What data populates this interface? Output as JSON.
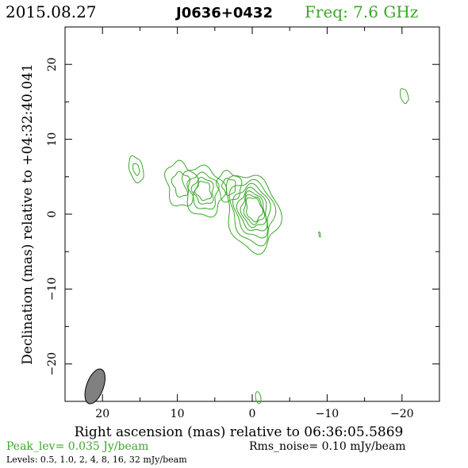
{
  "header": {
    "date": "2015.08.27",
    "source": "J0636+0432",
    "freq": "Freq:  7.6  GHz"
  },
  "axes": {
    "xlabel": "Right ascension (mas) relative to 06:36:05.5869",
    "ylabel": "Declination (mas) relative to +04:32:40.041"
  },
  "footer": {
    "peak": "Peak_lev=  0.035 Jy/beam",
    "rms": "Rms_noise= 0.10 mJy/beam",
    "levels": "Levels: 0.5, 1.0,    2,    4,    8,   16,   32 mJy/beam"
  },
  "colors": {
    "contour": "#3aa628",
    "beam_fill": "#808080",
    "green_text": "#3aa628"
  },
  "chart_data": {
    "type": "contour",
    "title": "J0636+0432",
    "xlabel": "Right ascension (mas) relative to 06:36:05.5869",
    "ylabel": "Declination (mas) relative to +04:32:40.041",
    "xlim": [
      25,
      -25
    ],
    "ylim": [
      -25,
      25
    ],
    "xticks": [
      20,
      10,
      0,
      -10,
      -20
    ],
    "xtick_labels": [
      "20",
      "10",
      "0",
      "−10",
      "−20"
    ],
    "yticks": [
      20,
      10,
      0,
      -10,
      -20
    ],
    "ytick_labels": [
      "20",
      "10",
      "0",
      "−10",
      "−20"
    ],
    "peak_jy_per_beam": 0.035,
    "rms_mjy_per_beam": 0.1,
    "levels_mjy_per_beam": [
      0.5,
      1.0,
      2,
      4,
      8,
      16,
      32
    ],
    "beam": {
      "x": 21,
      "y": -23,
      "major_mas": 3.6,
      "minor_mas": 1.4,
      "pa_deg": 20
    },
    "components": [
      {
        "name": "core",
        "x": 0.0,
        "y": 0.3,
        "n_levels": 7
      },
      {
        "name": "jet-knot-1",
        "x": 6.5,
        "y": 3.1,
        "n_levels": 4
      },
      {
        "name": "jet-knot-2",
        "x": 9.5,
        "y": 4.0,
        "n_levels": 2
      },
      {
        "name": "jet-knot-3",
        "x": 3.1,
        "y": 3.7,
        "n_levels": 2
      },
      {
        "name": "isolated-blob-east",
        "x": 15.5,
        "y": 6.0,
        "n_levels": 2
      },
      {
        "name": "isolated-blob-west",
        "x": -20.3,
        "y": 15.8,
        "n_levels": 1
      },
      {
        "name": "noise-spot",
        "x": -9.0,
        "y": -2.7,
        "n_levels": 1
      },
      {
        "name": "edge-spot",
        "x": -0.8,
        "y": -24.5,
        "n_levels": 1
      }
    ]
  }
}
